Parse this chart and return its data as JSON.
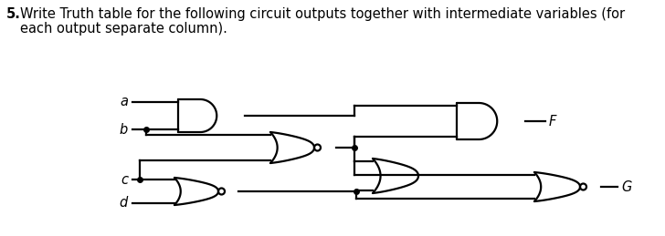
{
  "bg_color": "#ffffff",
  "line_color": "#000000",
  "text_color": "#000000",
  "bold_num": "5.",
  "title_line1": "Write Truth table for the following circuit outputs together with intermediate variables (for",
  "title_line2": "each output separate column).",
  "label_a": "a",
  "label_b": "b",
  "label_c": "c",
  "label_d": "d",
  "label_F": "F",
  "label_G": "G",
  "title_fontsize": 10.5,
  "label_fontsize": 10.5
}
